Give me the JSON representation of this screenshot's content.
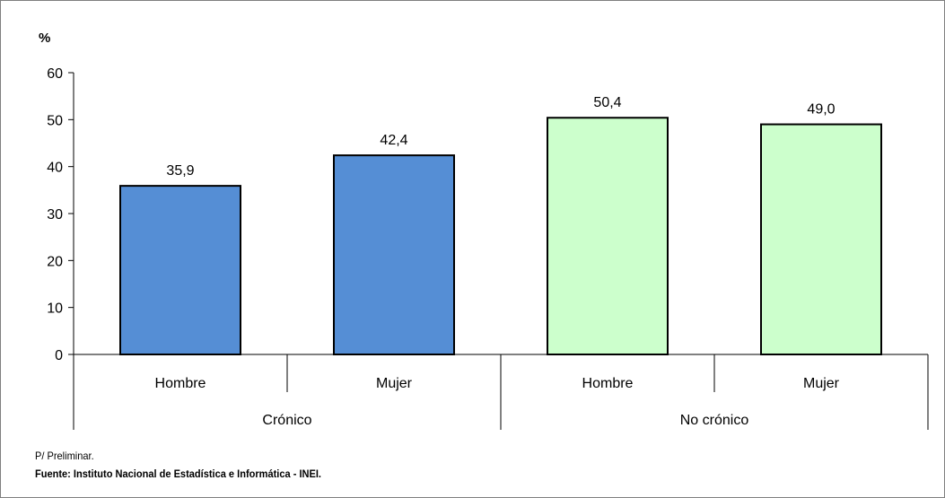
{
  "chart_data": {
    "type": "bar",
    "ylabel": "%",
    "ylim": [
      0,
      60
    ],
    "yticks": [
      0,
      10,
      20,
      30,
      40,
      50,
      60
    ],
    "groups": [
      "Crónico",
      "No crónico"
    ],
    "categories": [
      "Hombre",
      "Mujer",
      "Hombre",
      "Mujer"
    ],
    "values": [
      35.9,
      42.4,
      50.4,
      49.0
    ],
    "value_labels": [
      "35,9",
      "42,4",
      "50,4",
      "49,0"
    ],
    "colors": [
      "#558ed5",
      "#558ed5",
      "#ccffcc",
      "#ccffcc"
    ],
    "grid": false,
    "legend": "none"
  },
  "footnotes": {
    "preliminary": "P/ Preliminar.",
    "source": "Fuente: Instituto Nacional de Estadística e Informática - INEI."
  }
}
